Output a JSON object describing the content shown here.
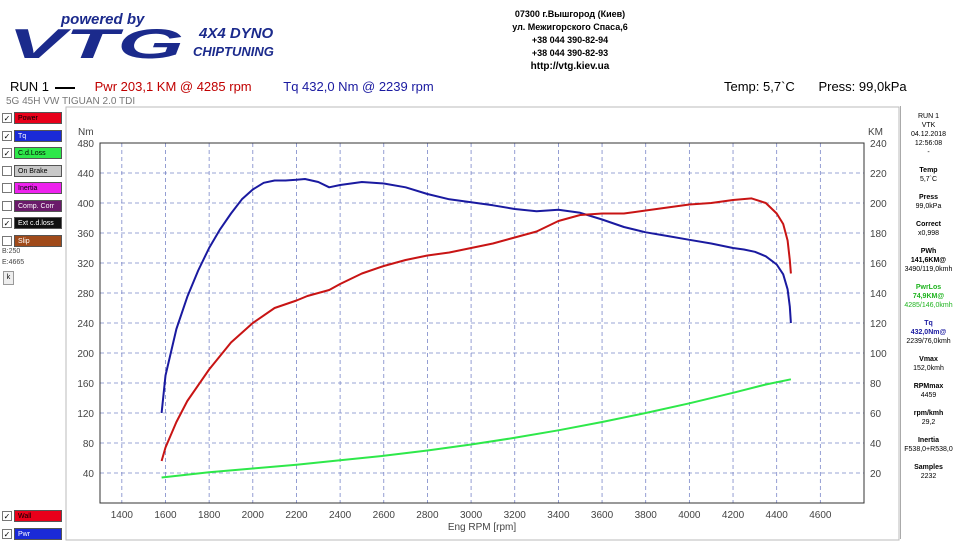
{
  "header": {
    "powered_by": "powered by",
    "logo_text": "VTG",
    "brand_line1": "4X4 DYNO",
    "brand_line2": "CHIPTUNING",
    "address": "07300 г.Вышгород (Киев)",
    "street": "ул. Межигорского Спаса,6",
    "phone1": "+38 044 390-82-94",
    "phone2": "+38 044 390-82-93",
    "url": "http://vtg.kiev.ua"
  },
  "summary": {
    "run": "RUN 1",
    "pwr": "Pwr  203,1 KM @ 4285 rpm",
    "tq": "Tq  432,0 Nm @ 2239 rpm",
    "temp": "Temp: 5,7`C",
    "press": "Press: 99,0kPa",
    "vehicle": "5G 45H VW TIGUAN 2.0 TDI"
  },
  "legend": {
    "items": [
      {
        "label": "Power",
        "checked": "✓",
        "color": "#e8001a"
      },
      {
        "label": "Tq",
        "checked": "✓",
        "color": "#1a2ad8"
      },
      {
        "label": "C.d.Loss",
        "checked": "✓",
        "color": "#2ee84a"
      },
      {
        "label": "On Brake",
        "checked": "",
        "color": "#c8c8c8"
      },
      {
        "label": "Inertia",
        "checked": "",
        "color": "#ee22ee"
      },
      {
        "label": "Comp. Corr",
        "checked": "",
        "color": "#6a1a6a"
      },
      {
        "label": "Ext c.d.loss",
        "checked": "✓",
        "color": "#101010"
      },
      {
        "label": "Slip",
        "checked": "",
        "color": "#a04a1a"
      }
    ],
    "b_value": "B:250",
    "e_value": "E:4665",
    "k_label": "k",
    "bottom": [
      {
        "label": "Wall",
        "checked": "✓",
        "color": "#e8001a"
      },
      {
        "label": "Pwr",
        "checked": "✓",
        "color": "#1a2ad8"
      }
    ]
  },
  "info_panel": {
    "run": "RUN 1",
    "operator": "VTK",
    "date": "04.12.2018",
    "time": "12:56:08",
    "dash": "-",
    "temp_label": "Temp",
    "temp": "5,7`C",
    "press_label": "Press",
    "press": "99,0kPa",
    "correct_label": "Correct",
    "correct": "x0,998",
    "pwh_label": "PWh",
    "pwh": "141,6KM@",
    "pwh_at": "3490/119,0kmh",
    "pwrlos_label": "PwrLos",
    "pwrlos": "74,9KM@",
    "pwrlos_at": "4285/146,0kmh",
    "tq_label": "Tq",
    "tq": "432,0Nm@",
    "tq_at": "2239/76,0kmh",
    "vmax_label": "Vmax",
    "vmax": "152,0kmh",
    "rpmmax_label": "RPMmax",
    "rpmmax": "4459",
    "rpmkmh_label": "rpm/kmh",
    "rpmkmh": "29,2",
    "inertia_label": "Inertia",
    "inertia": "F538,0+R538,0",
    "samples_label": "Samples",
    "samples": "2232"
  },
  "colors": {
    "power": "#c81414",
    "torque": "#1a1aa0",
    "loss": "#2ee84a",
    "grid": "#7a86c8"
  },
  "chart_data": {
    "type": "line",
    "xlabel": "Eng RPM [rpm]",
    "ylabel_left": "Nm",
    "ylabel_right": "KM",
    "xlim": [
      1300,
      4800
    ],
    "ylim_left": [
      0,
      480
    ],
    "ylim_right": [
      0,
      240
    ],
    "x_ticks": [
      1400,
      1600,
      1800,
      2000,
      2200,
      2400,
      2600,
      2800,
      3000,
      3200,
      3400,
      3600,
      3800,
      4000,
      4200,
      4400,
      4600
    ],
    "y_ticks_left": [
      40,
      80,
      120,
      160,
      200,
      240,
      280,
      320,
      360,
      400,
      440,
      480
    ],
    "y_ticks_right": [
      20,
      40,
      60,
      80,
      100,
      120,
      140,
      160,
      180,
      200,
      220,
      240
    ],
    "grid": true,
    "series": [
      {
        "name": "Tq",
        "axis": "left",
        "points": [
          [
            1582,
            120
          ],
          [
            1600,
            170
          ],
          [
            1650,
            232
          ],
          [
            1700,
            275
          ],
          [
            1750,
            310
          ],
          [
            1800,
            340
          ],
          [
            1850,
            365
          ],
          [
            1900,
            386
          ],
          [
            1950,
            405
          ],
          [
            2000,
            418
          ],
          [
            2050,
            427
          ],
          [
            2100,
            430
          ],
          [
            2150,
            430
          ],
          [
            2200,
            431
          ],
          [
            2239,
            432
          ],
          [
            2300,
            428
          ],
          [
            2350,
            421
          ],
          [
            2400,
            424
          ],
          [
            2500,
            428
          ],
          [
            2600,
            426
          ],
          [
            2700,
            421
          ],
          [
            2800,
            412
          ],
          [
            2900,
            405
          ],
          [
            3000,
            401
          ],
          [
            3100,
            397
          ],
          [
            3200,
            392
          ],
          [
            3300,
            389
          ],
          [
            3400,
            391
          ],
          [
            3500,
            387
          ],
          [
            3600,
            378
          ],
          [
            3700,
            368
          ],
          [
            3800,
            361
          ],
          [
            3900,
            356
          ],
          [
            4000,
            351
          ],
          [
            4100,
            346
          ],
          [
            4200,
            340
          ],
          [
            4250,
            338
          ],
          [
            4300,
            335
          ],
          [
            4350,
            329
          ],
          [
            4400,
            318
          ],
          [
            4430,
            305
          ],
          [
            4450,
            285
          ],
          [
            4460,
            262
          ],
          [
            4465,
            240
          ]
        ]
      },
      {
        "name": "Power",
        "axis": "right",
        "points": [
          [
            1582,
            28
          ],
          [
            1600,
            37
          ],
          [
            1650,
            54
          ],
          [
            1700,
            68
          ],
          [
            1800,
            89
          ],
          [
            1900,
            107
          ],
          [
            2000,
            120
          ],
          [
            2100,
            130
          ],
          [
            2200,
            135
          ],
          [
            2250,
            138
          ],
          [
            2350,
            142
          ],
          [
            2400,
            146
          ],
          [
            2500,
            153
          ],
          [
            2600,
            158
          ],
          [
            2700,
            162
          ],
          [
            2800,
            165
          ],
          [
            2900,
            167
          ],
          [
            3000,
            170
          ],
          [
            3100,
            173
          ],
          [
            3200,
            177
          ],
          [
            3300,
            181
          ],
          [
            3400,
            188
          ],
          [
            3500,
            192
          ],
          [
            3600,
            193
          ],
          [
            3700,
            193
          ],
          [
            3800,
            195
          ],
          [
            3900,
            197
          ],
          [
            4000,
            199
          ],
          [
            4100,
            200
          ],
          [
            4200,
            202
          ],
          [
            4285,
            203.1
          ],
          [
            4350,
            200
          ],
          [
            4400,
            193
          ],
          [
            4430,
            186
          ],
          [
            4450,
            175
          ],
          [
            4460,
            162
          ],
          [
            4465,
            153
          ]
        ]
      },
      {
        "name": "C.d.Loss",
        "axis": "right",
        "points": [
          [
            1582,
            17
          ],
          [
            1800,
            20.5
          ],
          [
            2000,
            23
          ],
          [
            2200,
            25.5
          ],
          [
            2400,
            28.5
          ],
          [
            2600,
            31.5
          ],
          [
            2800,
            35
          ],
          [
            3000,
            39
          ],
          [
            3200,
            43.5
          ],
          [
            3400,
            48.5
          ],
          [
            3600,
            54
          ],
          [
            3800,
            60
          ],
          [
            4000,
            66.5
          ],
          [
            4200,
            73.5
          ],
          [
            4350,
            79
          ],
          [
            4465,
            82.5
          ]
        ]
      }
    ]
  }
}
